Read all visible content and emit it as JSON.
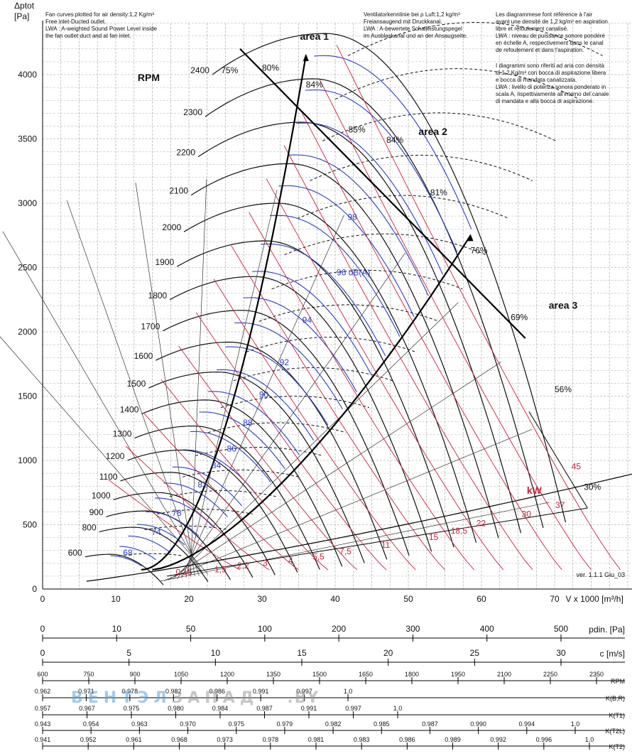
{
  "chart_data": {
    "type": "line",
    "y_axis_label_1": "Δptot",
    "y_axis_label_2": "[Pa]",
    "x_axis_label": "V x 1000 [m³/h]",
    "x_ticks": [
      0,
      10,
      20,
      30,
      40,
      50,
      60,
      70
    ],
    "y_ticks": [
      0,
      500,
      1000,
      1500,
      2000,
      2500,
      3000,
      3500,
      4000
    ],
    "xlim": [
      0,
      80
    ],
    "ylim": [
      0,
      4300
    ],
    "rpm_title": "RPM",
    "rpm_curves": [
      {
        "rpm": "600",
        "peak_x": 8.3,
        "peak_p": 260
      },
      {
        "rpm": "800",
        "peak_x": 11.1,
        "peak_p": 470
      },
      {
        "rpm": "900",
        "peak_x": 12.5,
        "peak_p": 590
      },
      {
        "rpm": "1000",
        "peak_x": 13.9,
        "peak_p": 730
      },
      {
        "rpm": "1100",
        "peak_x": 15.2,
        "peak_p": 880
      },
      {
        "rpm": "1200",
        "peak_x": 16.6,
        "peak_p": 1050
      },
      {
        "rpm": "1300",
        "peak_x": 18.0,
        "peak_p": 1230
      },
      {
        "rpm": "1400",
        "peak_x": 19.4,
        "peak_p": 1430
      },
      {
        "rpm": "1500",
        "peak_x": 20.8,
        "peak_p": 1640
      },
      {
        "rpm": "1600",
        "peak_x": 22.2,
        "peak_p": 1860
      },
      {
        "rpm": "1700",
        "peak_x": 23.6,
        "peak_p": 2100
      },
      {
        "rpm": "1800",
        "peak_x": 25.0,
        "peak_p": 2360
      },
      {
        "rpm": "1900",
        "peak_x": 26.4,
        "peak_p": 2630
      },
      {
        "rpm": "2000",
        "peak_x": 27.7,
        "peak_p": 2910
      },
      {
        "rpm": "2100",
        "peak_x": 29.1,
        "peak_p": 3210
      },
      {
        "rpm": "2200",
        "peak_x": 30.5,
        "peak_p": 3520
      },
      {
        "rpm": "2300",
        "peak_x": 31.9,
        "peak_p": 3850
      },
      {
        "rpm": "2400",
        "peak_x": 33.3,
        "peak_p": 4190
      }
    ],
    "efficiency_labels": [
      {
        "text": "75%",
        "x": 24.4,
        "y": 4010
      },
      {
        "text": "80%",
        "x": 30.0,
        "y": 4030
      },
      {
        "text": "84%",
        "x": 36.0,
        "y": 3900
      },
      {
        "text": "85%",
        "x": 41.8,
        "y": 3550
      },
      {
        "text": "84%",
        "x": 47.0,
        "y": 3470
      },
      {
        "text": "81%",
        "x": 53.0,
        "y": 3060
      },
      {
        "text": "76%",
        "x": 58.5,
        "y": 2610
      },
      {
        "text": "69%",
        "x": 64.0,
        "y": 2090
      },
      {
        "text": "56%",
        "x": 70.0,
        "y": 1530
      },
      {
        "text": "30%",
        "x": 74.0,
        "y": 770
      }
    ],
    "sound_labels_dBA": [
      {
        "text": "68",
        "x": 11.0,
        "y": 260
      },
      {
        "text": "74",
        "x": 14.9,
        "y": 420
      },
      {
        "text": "78",
        "x": 17.7,
        "y": 570
      },
      {
        "text": "82",
        "x": 21.2,
        "y": 790
      },
      {
        "text": "84",
        "x": 23.1,
        "y": 940
      },
      {
        "text": "86",
        "x": 25.2,
        "y": 1070
      },
      {
        "text": "88",
        "x": 27.4,
        "y": 1270
      },
      {
        "text": "90",
        "x": 29.6,
        "y": 1490
      },
      {
        "text": "92",
        "x": 32.4,
        "y": 1740
      },
      {
        "text": "94",
        "x": 35.5,
        "y": 2070
      },
      {
        "text": "96 dB(A)",
        "x": 40.2,
        "y": 2440
      },
      {
        "text": "98",
        "x": 41.7,
        "y": 2870
      }
    ],
    "power_labels_kW": [
      {
        "text": "0,15",
        "x": 18.2,
        "y": 110
      },
      {
        "text": "1,5",
        "x": 23.5,
        "y": 130
      },
      {
        "text": "2,2",
        "x": 26.6,
        "y": 160
      },
      {
        "text": "3",
        "x": 30.1,
        "y": 180
      },
      {
        "text": "4",
        "x": 33.6,
        "y": 200
      },
      {
        "text": "5,5",
        "x": 36.9,
        "y": 230
      },
      {
        "text": "7,5",
        "x": 40.6,
        "y": 270
      },
      {
        "text": "11",
        "x": 46.3,
        "y": 320
      },
      {
        "text": "15",
        "x": 52.8,
        "y": 380
      },
      {
        "text": "18,5",
        "x": 55.8,
        "y": 430
      },
      {
        "text": "22",
        "x": 59.3,
        "y": 490
      },
      {
        "text": "30",
        "x": 65.5,
        "y": 560
      },
      {
        "text": "37",
        "x": 70.1,
        "y": 630
      },
      {
        "text": "45",
        "x": 72.3,
        "y": 930
      }
    ],
    "kw_unit_label": "kW",
    "area_labels": [
      {
        "text": "area 1",
        "x": 35.2,
        "y": 4270
      },
      {
        "text": "area 2",
        "x": 51.4,
        "y": 3530
      },
      {
        "text": "area 3",
        "x": 69.2,
        "y": 2180
      }
    ],
    "version": "ver. 1.1.1 Giu_03"
  },
  "scales": [
    {
      "label": "pdin. [Pa]",
      "ticks": [
        "0",
        "10",
        "50",
        "100",
        "200",
        "300",
        "400",
        "500"
      ]
    },
    {
      "label": "c [m/s]",
      "ticks": [
        "0",
        "5",
        "10",
        "15",
        "20",
        "25",
        "30"
      ]
    },
    {
      "label": "RPM",
      "ticks": [
        "600",
        "750",
        "900",
        "1050",
        "1200",
        "1350",
        "1500",
        "1650",
        "1800",
        "1950",
        "2100",
        "2250",
        "2350"
      ]
    },
    {
      "label": "K(B,R)",
      "ticks": [
        "0.962",
        "0.971",
        "0.978",
        "0.982",
        "0.986",
        "0.991",
        "0.997",
        "1.0"
      ]
    },
    {
      "label": "K(T1)",
      "ticks": [
        "0.957",
        "0.967",
        "0.975",
        "0.980",
        "0.984",
        "0.987",
        "0.991",
        "0.997",
        "1.0"
      ]
    },
    {
      "label": "K(T2L)",
      "ticks": [
        "0.943",
        "0.954",
        "0.963",
        "0.970",
        "0.975",
        "0.979",
        "0.982",
        "0.985",
        "0.987",
        "0.990",
        "0.994",
        "1.0"
      ]
    },
    {
      "label": "K(T2)",
      "ticks": [
        "0.941",
        "0.952",
        "0.961",
        "0.968",
        "0.973",
        "0.978",
        "0.981",
        "0.983",
        "0.986",
        "0.989",
        "0.992",
        "0.996",
        "1.0"
      ]
    }
  ],
  "notes": {
    "en": "Fan curves plotted for air density:1,2 Kg/m³\nFree inlet-Ducted outlet.\nLWA : A-weighted Sound Power Level inside\nthe fan outlet duct and at fan inlet.",
    "de": "Ventilatorkennlinie bei ρ Luft:1,2 kg/m³\nFreiansaugend mit Druckkanal.\nLWA : A-bewertete Schalleistungspegel\nim Ausblaskanal und an der Ansaugseite.",
    "fr": "Les diagrammese font référence à l'air\nayant une densité de 1,2 kg/m³ en aspiration\nlibre et refoulement canalisé.\nLWA : niveau de puissance sonore pondéré\nen échelle A, respectivement dans le canal\nde refoulement et dans l'aspiration.",
    "it": "I diagrammi sono riferiti ad aria con densità\ndi 1,2 Kg/m³ con bocca di aspirazione libera\ne bocca di mandata canalizzata.\nLWA : livello di potenza sonora ponderato in\nscala A, rispettivamente all'interno del canale\ndi mandata e alla bocca di aspirazione."
  },
  "watermark": {
    "part_a": "ВЕНТЭЛ",
    "part_b": "ЗАПАД",
    "part_c": ".BY"
  },
  "colors": {
    "rpm": "#111111",
    "sound": "#2b3fbf",
    "power": "#c4233c",
    "grid": "#9a9a9a",
    "outline": "#000000"
  }
}
